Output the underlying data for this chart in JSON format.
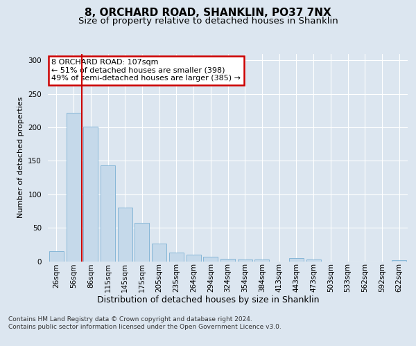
{
  "title": "8, ORCHARD ROAD, SHANKLIN, PO37 7NX",
  "subtitle": "Size of property relative to detached houses in Shanklin",
  "xlabel": "Distribution of detached houses by size in Shanklin",
  "ylabel": "Number of detached properties",
  "bar_labels": [
    "26sqm",
    "56sqm",
    "86sqm",
    "115sqm",
    "145sqm",
    "175sqm",
    "205sqm",
    "235sqm",
    "264sqm",
    "294sqm",
    "324sqm",
    "354sqm",
    "384sqm",
    "413sqm",
    "443sqm",
    "473sqm",
    "503sqm",
    "533sqm",
    "562sqm",
    "592sqm",
    "622sqm"
  ],
  "bar_values": [
    15,
    222,
    201,
    143,
    80,
    57,
    26,
    13,
    10,
    7,
    4,
    3,
    3,
    0,
    5,
    3,
    0,
    0,
    0,
    0,
    2
  ],
  "bar_color": "#c5d9ea",
  "bar_edge_color": "#7ab0d4",
  "marker_color": "#cc0000",
  "annotation_text": "8 ORCHARD ROAD: 107sqm\n← 51% of detached houses are smaller (398)\n49% of semi-detached houses are larger (385) →",
  "annotation_box_color": "#ffffff",
  "annotation_box_edge": "#cc0000",
  "ylim": [
    0,
    310
  ],
  "yticks": [
    0,
    50,
    100,
    150,
    200,
    250,
    300
  ],
  "background_color": "#dce6f0",
  "plot_bg_color": "#dce6f0",
  "footer": "Contains HM Land Registry data © Crown copyright and database right 2024.\nContains public sector information licensed under the Open Government Licence v3.0.",
  "title_fontsize": 11,
  "subtitle_fontsize": 9.5,
  "xlabel_fontsize": 9,
  "ylabel_fontsize": 8,
  "tick_fontsize": 7.5,
  "footer_fontsize": 6.5,
  "ann_fontsize": 8
}
